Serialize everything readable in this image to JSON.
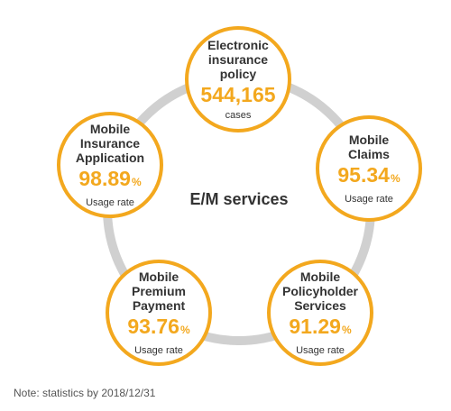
{
  "center_label": "E/M services",
  "nodes": [
    {
      "title": [
        "Electronic",
        "insurance",
        "policy"
      ],
      "value": "544,165",
      "unit": "",
      "sub": "cases"
    },
    {
      "title": [
        "Mobile",
        "Claims"
      ],
      "value": "95.34",
      "unit": "%",
      "sub": "Usage rate"
    },
    {
      "title": [
        "Mobile",
        "Policyholder",
        "Services"
      ],
      "value": "91.29",
      "unit": "%",
      "sub": "Usage rate"
    },
    {
      "title": [
        "Mobile",
        "Premium",
        "Payment"
      ],
      "value": "93.76",
      "unit": "%",
      "sub": "Usage rate"
    },
    {
      "title": [
        "Mobile",
        "Insurance",
        "Application"
      ],
      "value": "98.89",
      "unit": "%",
      "sub": "Usage rate"
    }
  ],
  "note": "Note: statistics by 2018/12/31",
  "colors": {
    "accent": "#f3a81e",
    "ring": "#d0d0d0",
    "text": "#333333"
  }
}
